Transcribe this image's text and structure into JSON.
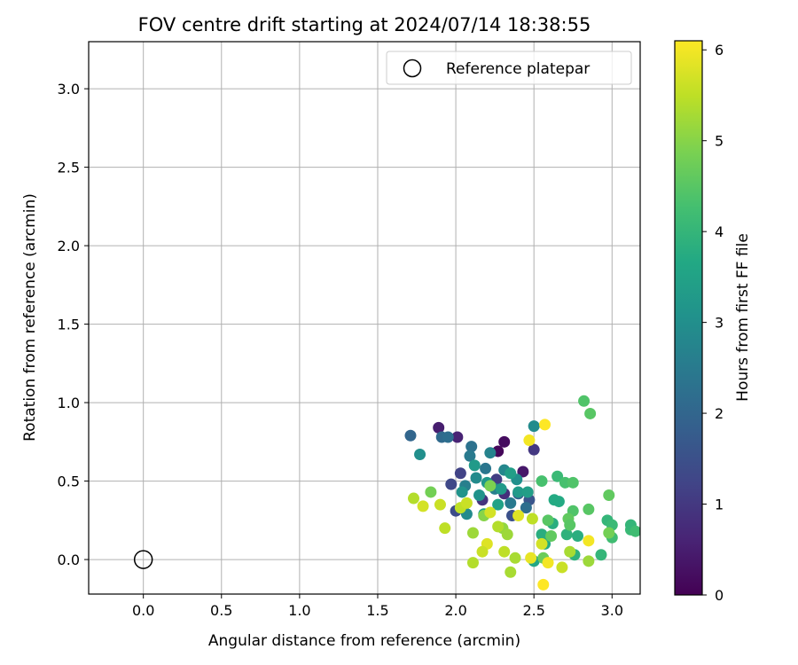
{
  "chart_data": {
    "type": "scatter",
    "title": "FOV centre drift starting at 2024/07/14 18:38:55",
    "xlabel": "Angular distance from reference (arcmin)",
    "ylabel": "Rotation from reference (arcmin)",
    "xlim": [
      -0.35,
      3.18
    ],
    "ylim": [
      -0.22,
      3.3
    ],
    "xticks": [
      "0.0",
      "0.5",
      "1.0",
      "1.5",
      "2.0",
      "2.5",
      "3.0"
    ],
    "yticks": [
      "0.0",
      "0.5",
      "1.0",
      "1.5",
      "2.0",
      "2.5",
      "3.0"
    ],
    "grid": true,
    "legend": {
      "placement": "top-right",
      "entries": [
        "Reference platepar"
      ]
    },
    "reference_point": {
      "x": 0.0,
      "y": 0.0,
      "marker": "open-circle",
      "label": "Reference platepar"
    },
    "colorbar": {
      "label": "Hours from first FF file",
      "range": [
        0,
        6.1
      ],
      "ticks": [
        "0",
        "1",
        "2",
        "3",
        "4",
        "5",
        "6"
      ],
      "colormap": "viridis"
    },
    "points": [
      [
        1.89,
        0.84,
        0.5
      ],
      [
        2.01,
        0.78,
        0.6
      ],
      [
        2.31,
        0.75,
        0.2
      ],
      [
        2.27,
        0.69,
        0.1
      ],
      [
        2.43,
        0.56,
        0.4
      ],
      [
        2.5,
        0.7,
        1.0
      ],
      [
        2.31,
        0.42,
        0.8
      ],
      [
        2.17,
        0.38,
        0.9
      ],
      [
        2.03,
        0.55,
        1.2
      ],
      [
        1.97,
        0.48,
        1.3
      ],
      [
        2.26,
        0.51,
        1.1
      ],
      [
        2.36,
        0.28,
        1.5
      ],
      [
        2.0,
        0.31,
        1.4
      ],
      [
        2.47,
        0.38,
        1.6
      ],
      [
        2.4,
        0.42,
        1.9
      ],
      [
        1.71,
        0.79,
        2.0
      ],
      [
        1.91,
        0.78,
        2.1
      ],
      [
        1.95,
        0.78,
        2.2
      ],
      [
        2.1,
        0.72,
        2.3
      ],
      [
        2.19,
        0.58,
        2.4
      ],
      [
        2.09,
        0.66,
        2.5
      ],
      [
        2.06,
        0.47,
        2.6
      ],
      [
        2.22,
        0.68,
        2.7
      ],
      [
        2.25,
        0.45,
        2.6
      ],
      [
        2.31,
        0.57,
        2.8
      ],
      [
        2.13,
        0.52,
        2.9
      ],
      [
        2.39,
        0.51,
        3.0
      ],
      [
        2.35,
        0.36,
        2.5
      ],
      [
        2.45,
        0.33,
        2.2
      ],
      [
        2.5,
        0.85,
        2.9
      ],
      [
        2.07,
        0.29,
        2.9
      ],
      [
        2.15,
        0.41,
        3.1
      ],
      [
        1.77,
        0.67,
        3.0
      ],
      [
        2.04,
        0.43,
        3.1
      ],
      [
        2.2,
        0.49,
        3.2
      ],
      [
        2.29,
        0.45,
        3.3
      ],
      [
        2.12,
        0.6,
        3.3
      ],
      [
        2.35,
        0.55,
        3.4
      ],
      [
        2.4,
        0.43,
        3.3
      ],
      [
        2.46,
        0.43,
        3.4
      ],
      [
        2.27,
        0.35,
        3.5
      ],
      [
        2.18,
        0.29,
        3.5
      ],
      [
        2.55,
        0.16,
        3.8
      ],
      [
        2.57,
        0.1,
        3.7
      ],
      [
        2.5,
        -0.01,
        3.6
      ],
      [
        2.62,
        0.23,
        3.8
      ],
      [
        2.63,
        0.38,
        3.7
      ],
      [
        2.66,
        0.37,
        3.7
      ],
      [
        2.71,
        0.16,
        3.9
      ],
      [
        2.78,
        0.15,
        3.8
      ],
      [
        2.76,
        0.03,
        3.9
      ],
      [
        2.93,
        0.03,
        4.0
      ],
      [
        2.97,
        0.25,
        4.0
      ],
      [
        3.0,
        0.22,
        4.1
      ],
      [
        3.0,
        0.14,
        4.2
      ],
      [
        3.12,
        0.19,
        4.1
      ],
      [
        3.12,
        0.22,
        4.0
      ],
      [
        3.15,
        0.18,
        4.2
      ],
      [
        2.65,
        0.53,
        4.1
      ],
      [
        2.55,
        0.5,
        4.3
      ],
      [
        2.7,
        0.49,
        4.3
      ],
      [
        2.75,
        0.49,
        4.4
      ],
      [
        2.75,
        0.31,
        4.4
      ],
      [
        2.85,
        0.32,
        4.5
      ],
      [
        2.82,
        1.01,
        4.4
      ],
      [
        2.86,
        0.93,
        4.5
      ],
      [
        2.72,
        0.26,
        4.6
      ],
      [
        2.73,
        0.22,
        4.5
      ],
      [
        2.98,
        0.41,
        4.6
      ],
      [
        2.98,
        0.17,
        4.8
      ],
      [
        2.59,
        0.25,
        4.5
      ],
      [
        2.61,
        0.15,
        4.6
      ],
      [
        2.56,
        0.01,
        4.7
      ],
      [
        1.84,
        0.43,
        4.8
      ],
      [
        2.22,
        0.47,
        4.9
      ],
      [
        2.18,
        0.28,
        5.0
      ],
      [
        2.3,
        0.2,
        5.1
      ],
      [
        2.33,
        0.16,
        5.2
      ],
      [
        2.38,
        0.01,
        5.3
      ],
      [
        2.11,
        0.17,
        5.2
      ],
      [
        2.11,
        -0.02,
        5.4
      ],
      [
        2.35,
        -0.08,
        5.3
      ],
      [
        2.85,
        -0.01,
        5.2
      ],
      [
        2.68,
        -0.05,
        5.6
      ],
      [
        2.73,
        0.05,
        5.3
      ],
      [
        1.93,
        0.2,
        5.5
      ],
      [
        1.9,
        0.35,
        5.6
      ],
      [
        1.79,
        0.34,
        5.7
      ],
      [
        1.73,
        0.39,
        5.4
      ],
      [
        2.03,
        0.33,
        5.5
      ],
      [
        2.07,
        0.36,
        5.6
      ],
      [
        2.22,
        0.3,
        5.7
      ],
      [
        2.2,
        0.1,
        5.8
      ],
      [
        2.31,
        0.05,
        5.5
      ],
      [
        2.17,
        0.05,
        5.6
      ],
      [
        2.48,
        0.01,
        5.9
      ],
      [
        2.59,
        -0.02,
        6.0
      ],
      [
        2.55,
        0.1,
        5.7
      ],
      [
        2.56,
        -0.16,
        6.1
      ],
      [
        2.47,
        0.76,
        6.0
      ],
      [
        2.57,
        0.86,
        6.1
      ],
      [
        2.85,
        0.12,
        6.0
      ],
      [
        2.4,
        0.28,
        5.8
      ],
      [
        2.49,
        0.26,
        5.5
      ],
      [
        2.27,
        0.21,
        5.4
      ]
    ]
  }
}
